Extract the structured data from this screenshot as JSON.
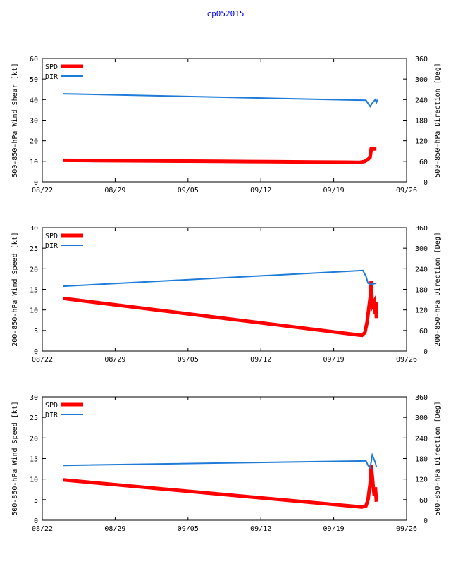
{
  "title": "cp052015",
  "chart_data": [
    {
      "type": "line",
      "ylabel_left": "500-850-hPa Wind Shear [kt]",
      "ylabel_right": "500-850-hPa Direction [Deg]",
      "ylim_left": [
        0,
        60
      ],
      "ylim_right": [
        0,
        360
      ],
      "yticks_left": [
        0,
        10,
        20,
        30,
        40,
        50,
        60
      ],
      "yticks_right": [
        0,
        60,
        120,
        180,
        240,
        300,
        360
      ],
      "xlim": [
        0,
        35
      ],
      "xticks": [
        {
          "value": 0,
          "label": "08/22"
        },
        {
          "value": 7,
          "label": "08/29"
        },
        {
          "value": 14,
          "label": "09/05"
        },
        {
          "value": 21,
          "label": "09/12"
        },
        {
          "value": 28,
          "label": "09/19"
        },
        {
          "value": 35,
          "label": "09/26"
        }
      ],
      "series": [
        {
          "name": "SPD",
          "color": "#ff0000",
          "axis": "left",
          "x": [
            2,
            5,
            8,
            11,
            14,
            17,
            20,
            23,
            26,
            29,
            30.5,
            31,
            31.3,
            31.5,
            31.6,
            31.8,
            32.1
          ],
          "y": [
            10.5,
            10.4,
            10.3,
            10.2,
            10.1,
            10.0,
            9.9,
            9.8,
            9.7,
            9.6,
            9.5,
            10,
            11,
            12,
            16,
            16,
            16
          ]
        },
        {
          "name": "DIR",
          "color": "#1e7bd8",
          "axis": "right",
          "x": [
            2,
            31.1,
            31.5,
            31.7,
            32.0,
            32.1,
            32.2
          ],
          "y": [
            257,
            238,
            220,
            230,
            240,
            232,
            240
          ]
        }
      ]
    },
    {
      "type": "line",
      "ylabel_left": "200-850-hPa Wind Speed [kt]",
      "ylabel_right": "200-850-hPa Direction [Deg]",
      "ylim_left": [
        0,
        30
      ],
      "ylim_right": [
        0,
        360
      ],
      "yticks_left": [
        0,
        5,
        10,
        15,
        20,
        25,
        30
      ],
      "yticks_right": [
        0,
        60,
        120,
        180,
        240,
        300,
        360
      ],
      "xlim": [
        0,
        35
      ],
      "xticks": [
        {
          "value": 0,
          "label": "08/22"
        },
        {
          "value": 7,
          "label": "08/29"
        },
        {
          "value": 14,
          "label": "09/05"
        },
        {
          "value": 21,
          "label": "09/12"
        },
        {
          "value": 28,
          "label": "09/19"
        },
        {
          "value": 35,
          "label": "09/26"
        }
      ],
      "series": [
        {
          "name": "SPD",
          "color": "#ff0000",
          "axis": "left",
          "x": [
            2,
            30.7,
            31.0,
            31.2,
            31.35,
            31.5,
            31.6,
            31.7,
            31.9,
            32.0,
            32.05,
            32.1
          ],
          "y": [
            12.8,
            3.8,
            4.5,
            7,
            10,
            13,
            17,
            11,
            12,
            9,
            12,
            8
          ]
        },
        {
          "name": "DIR",
          "color": "#1e7bd8",
          "axis": "right",
          "x": [
            2,
            30.8,
            31.1,
            31.3,
            31.5,
            31.7,
            32.0,
            32.1
          ],
          "y": [
            189,
            235,
            218,
            198,
            195,
            195,
            197,
            198
          ]
        }
      ]
    },
    {
      "type": "line",
      "ylabel_left": "500-850-hPa Wind Speed [kt]",
      "ylabel_right": "500-850-hPa Direction [Deg]",
      "ylim_left": [
        0,
        30
      ],
      "ylim_right": [
        0,
        360
      ],
      "yticks_left": [
        0,
        5,
        10,
        15,
        20,
        25,
        30
      ],
      "yticks_right": [
        0,
        60,
        120,
        180,
        240,
        300,
        360
      ],
      "xlim": [
        0,
        35
      ],
      "xticks": [
        {
          "value": 0,
          "label": "08/22"
        },
        {
          "value": 7,
          "label": "08/29"
        },
        {
          "value": 14,
          "label": "09/05"
        },
        {
          "value": 21,
          "label": "09/12"
        },
        {
          "value": 28,
          "label": "09/19"
        },
        {
          "value": 35,
          "label": "09/26"
        }
      ],
      "series": [
        {
          "name": "SPD",
          "color": "#ff0000",
          "axis": "left",
          "x": [
            2,
            30.7,
            31.1,
            31.3,
            31.5,
            31.6,
            31.8,
            31.9,
            32.0,
            32.1
          ],
          "y": [
            9.8,
            3.2,
            3.5,
            5,
            9,
            13.5,
            8,
            6,
            8,
            4.5
          ]
        },
        {
          "name": "DIR",
          "color": "#1e7bd8",
          "axis": "right",
          "x": [
            2,
            30.8,
            31.1,
            31.3,
            31.5,
            31.7,
            32.0,
            32.1
          ],
          "y": [
            160,
            173,
            173,
            160,
            152,
            190,
            168,
            155
          ]
        }
      ]
    }
  ]
}
